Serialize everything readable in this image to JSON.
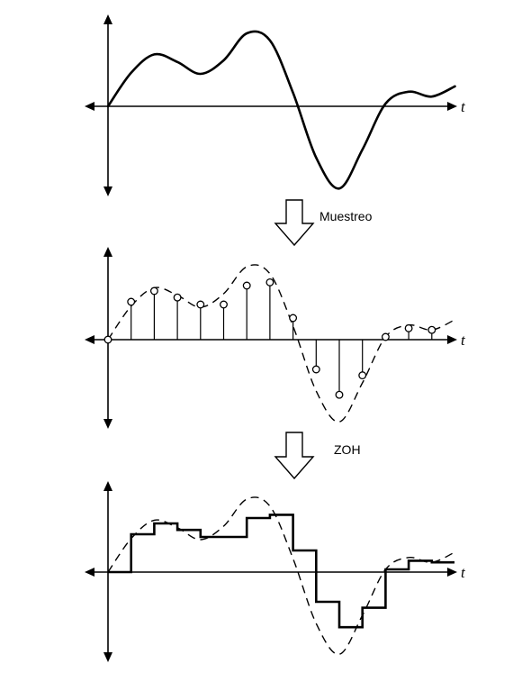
{
  "diagram": {
    "axis_symbol": "t",
    "steps": [
      {
        "label": "Muestreo"
      },
      {
        "label": "ZOH"
      }
    ],
    "signal": {
      "description_points": [
        [
          0,
          0
        ],
        [
          1,
          0.62
        ],
        [
          2,
          0.96
        ],
        [
          3,
          0.82
        ],
        [
          4,
          0.6
        ],
        [
          5,
          0.85
        ],
        [
          6,
          1.35
        ],
        [
          7,
          1.22
        ],
        [
          8,
          0.25
        ],
        [
          9,
          -0.95
        ],
        [
          10,
          -1.52
        ],
        [
          11,
          -0.8
        ],
        [
          12,
          0.05
        ],
        [
          13,
          0.27
        ],
        [
          14,
          0.18
        ],
        [
          15,
          0.37
        ]
      ]
    },
    "samples": [
      0,
      0.7,
      0.9,
      0.78,
      0.65,
      0.65,
      1.0,
      1.06,
      0.4,
      -0.55,
      -1.02,
      -0.66,
      0.05,
      0.21,
      0.18
    ]
  }
}
